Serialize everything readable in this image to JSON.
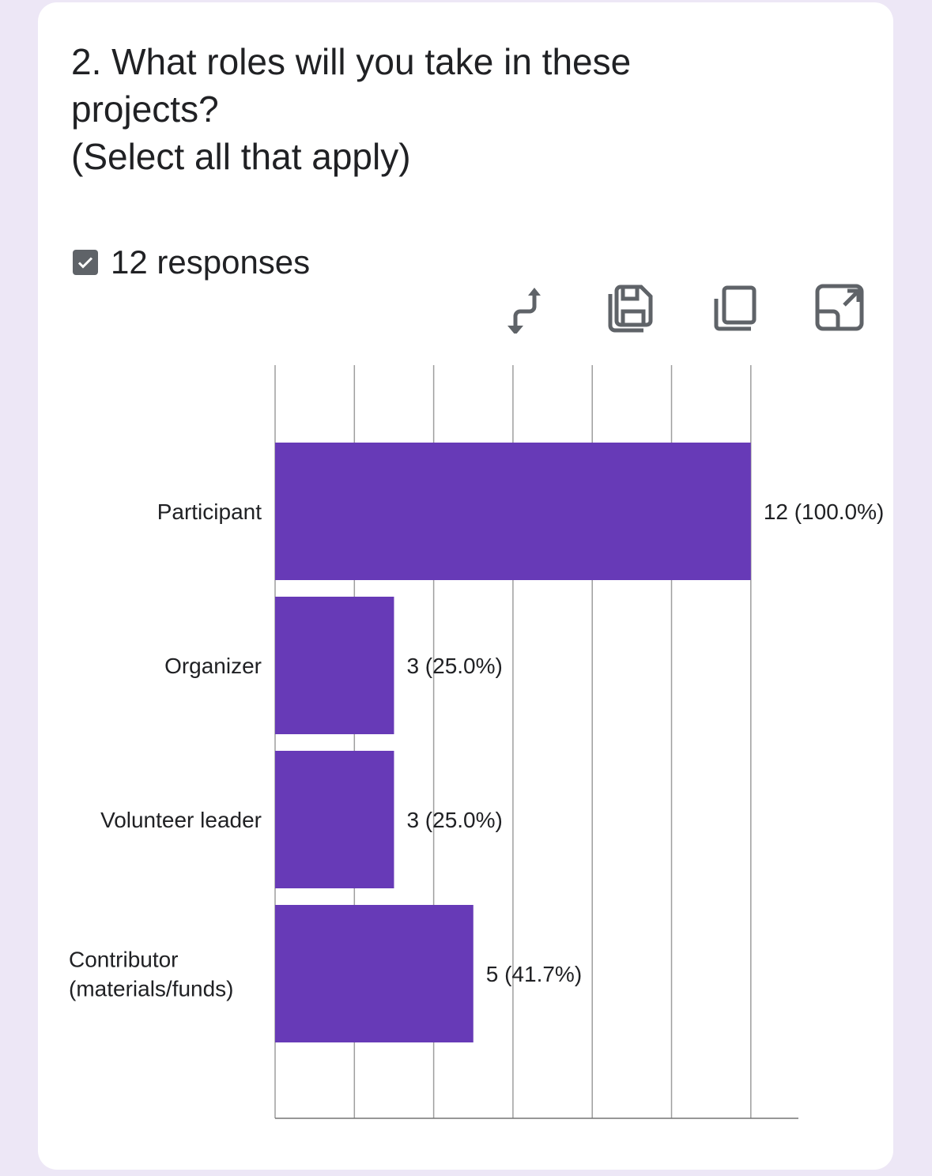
{
  "question": {
    "title_lines": [
      "2. What roles will you take in these",
      "projects?",
      "(Select all that apply)"
    ],
    "responses": "12 responses"
  },
  "toolbar": {
    "icons": [
      "swap-axes-icon",
      "save-icon",
      "copy-icon",
      "expand-icon"
    ]
  },
  "colors": {
    "bar": "#673ab7",
    "background": "#ede7f6",
    "icon": "#5f6368"
  },
  "chart_data": {
    "type": "bar",
    "orientation": "horizontal",
    "categories": [
      "Participant",
      "Organizer",
      "Volunteer leader",
      "Contributor (materials/funds)"
    ],
    "category_lines": [
      [
        "Participant"
      ],
      [
        "Organizer"
      ],
      [
        "Volunteer leader"
      ],
      [
        "Contributor",
        "(materials/funds)"
      ]
    ],
    "values": [
      12,
      3,
      3,
      5
    ],
    "data_labels": [
      "12 (100.0%)",
      "3 (25.0%)",
      "3 (25.0%)",
      "5 (41.7%)"
    ],
    "xlim": [
      0,
      13.2
    ],
    "grid_x": [
      0,
      2,
      4,
      6,
      8,
      10,
      12
    ],
    "grid": true,
    "tick_labels_shown": false
  }
}
